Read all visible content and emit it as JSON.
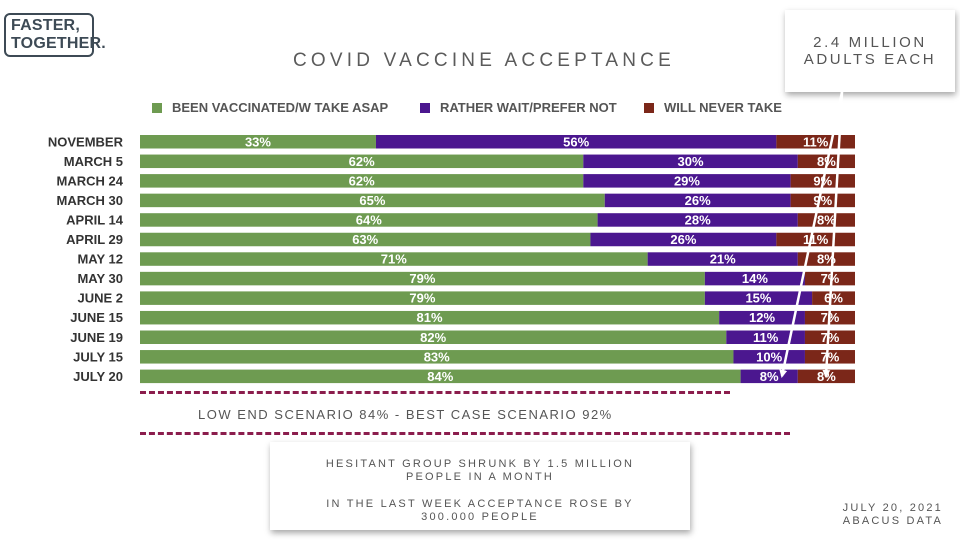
{
  "logo": {
    "line1": "FASTER,",
    "line2": "TOGETHER."
  },
  "callout": {
    "line1": "2.4 MILLION",
    "line2": "ADULTS EACH"
  },
  "scenario_text": "LOW END SCENARIO 84% - BEST CASE SCENARIO 92%",
  "note": {
    "line1": "HESITANT GROUP SHRUNK BY 1.5 MILLION",
    "line2": "PEOPLE IN A MONTH",
    "line3": "IN THE LAST WEEK ACCEPTANCE ROSE BY",
    "line4": "300.000 PEOPLE"
  },
  "source": {
    "date": "JULY 20, 2021",
    "name": "ABACUS DATA"
  },
  "colors": {
    "vaccinated": "#6e9b51",
    "wait": "#4b178f",
    "never": "#7b2719",
    "dash": "#8b1d4d"
  },
  "chart_data": {
    "type": "bar",
    "orientation": "horizontal",
    "stacked": true,
    "title": "COVID VACCINE ACCEPTANCE",
    "legend_position": "top",
    "unit": "%",
    "categories": [
      "NOVEMBER",
      "MARCH 5",
      "MARCH 24",
      "MARCH 30",
      "APRIL 14",
      "APRIL 29",
      "MAY 12",
      "MAY 30",
      "JUNE 2",
      "JUNE 15",
      "JUNE 19",
      "JULY 15",
      "JULY 20"
    ],
    "series": [
      {
        "name": "BEEN VACCINATED/W TAKE ASAP",
        "values": [
          33,
          62,
          62,
          65,
          64,
          63,
          71,
          79,
          79,
          81,
          82,
          83,
          84
        ]
      },
      {
        "name": "RATHER WAIT/PREFER NOT",
        "values": [
          56,
          30,
          29,
          26,
          28,
          26,
          21,
          14,
          15,
          12,
          11,
          10,
          8
        ]
      },
      {
        "name": "WILL NEVER TAKE",
        "values": [
          11,
          8,
          9,
          9,
          8,
          11,
          8,
          7,
          6,
          7,
          7,
          7,
          8
        ]
      }
    ]
  }
}
